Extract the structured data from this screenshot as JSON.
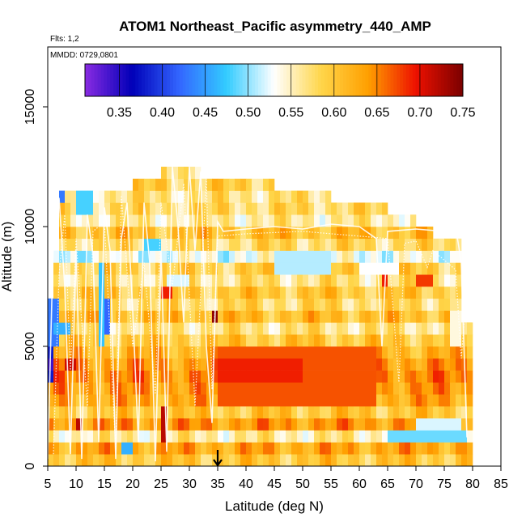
{
  "chart_data": {
    "type": "heatmap",
    "title": "ATOM1 Northeast_Pacific asymmetry_440_AMP",
    "subtitle_flights": "Flts: 1,2",
    "subtitle_dates": "MMDD: 0729,0801",
    "xlabel": "Latitude (deg N)",
    "ylabel": "Altitude (m)",
    "xlim": [
      5,
      85
    ],
    "ylim": [
      0,
      17500
    ],
    "xticks": [
      "5",
      "10",
      "15",
      "20",
      "25",
      "30",
      "35",
      "40",
      "45",
      "50",
      "55",
      "60",
      "65",
      "70",
      "75",
      "80",
      "85"
    ],
    "yticks": [
      "0",
      "5000",
      "10000",
      "15000"
    ],
    "arrow_marker_latitude": 35,
    "colorbar": {
      "min": 0.31,
      "max": 0.75,
      "ticks": [
        "0.35",
        "0.40",
        "0.45",
        "0.50",
        "0.55",
        "0.60",
        "0.65",
        "0.70",
        "0.75"
      ],
      "colors": [
        "#8a2be2",
        "#0000b8",
        "#3366ff",
        "#33ccff",
        "#ffffff",
        "#ffd64a",
        "#ff9f00",
        "#ee1100",
        "#7a0000"
      ]
    },
    "cell_size": {
      "lat_deg": 1.0,
      "alt_m": 500
    },
    "columns": [
      {
        "lat_range": [
          5,
          6
        ],
        "alt_range": [
          0,
          7000
        ]
      },
      {
        "lat_range": [
          6,
          7
        ],
        "alt_range": [
          0,
          9000
        ]
      },
      {
        "lat_range": [
          7,
          9
        ],
        "alt_range": [
          0,
          11500
        ]
      },
      {
        "lat_range": [
          9,
          14
        ],
        "alt_range": [
          0,
          11500
        ]
      },
      {
        "lat_range": [
          14,
          20
        ],
        "alt_range": [
          0,
          11500
        ]
      },
      {
        "lat_range": [
          20,
          25
        ],
        "alt_range": [
          0,
          12000
        ]
      },
      {
        "lat_range": [
          25,
          32
        ],
        "alt_range": [
          0,
          12500
        ]
      },
      {
        "lat_range": [
          32,
          35
        ],
        "alt_range": [
          0,
          12000
        ]
      },
      {
        "lat_range": [
          35,
          45
        ],
        "alt_range": [
          0,
          12000
        ]
      },
      {
        "lat_range": [
          45,
          55
        ],
        "alt_range": [
          0,
          11500
        ]
      },
      {
        "lat_range": [
          55,
          65
        ],
        "alt_range": [
          0,
          11000
        ]
      },
      {
        "lat_range": [
          65,
          70
        ],
        "alt_range": [
          0,
          10500
        ]
      },
      {
        "lat_range": [
          70,
          73
        ],
        "alt_range": [
          0,
          10000
        ]
      },
      {
        "lat_range": [
          73,
          78
        ],
        "alt_range": [
          0,
          9500
        ]
      },
      {
        "lat_range": [
          78,
          80
        ],
        "alt_range": [
          0,
          6000
        ]
      }
    ],
    "layers": [
      {
        "alt_range": [
          0,
          500
        ],
        "value": 0.6
      },
      {
        "alt_range": [
          500,
          1000
        ],
        "value": 0.63
      },
      {
        "alt_range": [
          1000,
          1500
        ],
        "value": 0.56
      },
      {
        "alt_range": [
          1500,
          2000
        ],
        "value": 0.64
      },
      {
        "alt_range": [
          2000,
          2500
        ],
        "value": 0.6
      },
      {
        "alt_range": [
          2500,
          3000
        ],
        "value": 0.63
      },
      {
        "alt_range": [
          3000,
          3500
        ],
        "value": 0.64
      },
      {
        "alt_range": [
          3500,
          4000
        ],
        "value": 0.65
      },
      {
        "alt_range": [
          4000,
          4500
        ],
        "value": 0.64
      },
      {
        "alt_range": [
          4500,
          5000
        ],
        "value": 0.62
      },
      {
        "alt_range": [
          5000,
          5500
        ],
        "value": 0.6
      },
      {
        "alt_range": [
          5500,
          6000
        ],
        "value": 0.57
      },
      {
        "alt_range": [
          6000,
          6500
        ],
        "value": 0.61
      },
      {
        "alt_range": [
          6500,
          7000
        ],
        "value": 0.58
      },
      {
        "alt_range": [
          7000,
          7500
        ],
        "value": 0.6
      },
      {
        "alt_range": [
          7500,
          8000
        ],
        "value": 0.57
      },
      {
        "alt_range": [
          8000,
          8500
        ],
        "value": 0.59
      },
      {
        "alt_range": [
          8500,
          9000
        ],
        "value": 0.53
      },
      {
        "alt_range": [
          9000,
          9500
        ],
        "value": 0.58
      },
      {
        "alt_range": [
          9500,
          10000
        ],
        "value": 0.61
      },
      {
        "alt_range": [
          10000,
          10500
        ],
        "value": 0.56
      },
      {
        "alt_range": [
          10500,
          11000
        ],
        "value": 0.58
      },
      {
        "alt_range": [
          11000,
          11500
        ],
        "value": 0.57
      },
      {
        "alt_range": [
          11500,
          12000
        ],
        "value": 0.59
      },
      {
        "alt_range": [
          12000,
          12500
        ],
        "value": 0.58
      },
      {
        "alt_range": [
          12500,
          13000
        ],
        "value": 0.63
      }
    ],
    "features": [
      {
        "lat_range": [
          35,
          63
        ],
        "alt_range": [
          2500,
          5000
        ],
        "value": 0.67
      },
      {
        "lat_range": [
          35,
          50
        ],
        "alt_range": [
          3500,
          4500
        ],
        "value": 0.69
      },
      {
        "lat_range": [
          65,
          79
        ],
        "alt_range": [
          1000,
          1500
        ],
        "value": 0.49
      },
      {
        "lat_range": [
          70,
          78
        ],
        "alt_range": [
          1500,
          2000
        ],
        "value": 0.52
      },
      {
        "lat_range": [
          5,
          6
        ],
        "alt_range": [
          3500,
          5000
        ],
        "value": 0.38
      },
      {
        "lat_range": [
          5,
          7
        ],
        "alt_range": [
          5000,
          7000
        ],
        "value": 0.43
      },
      {
        "lat_range": [
          5,
          6
        ],
        "alt_range": [
          4000,
          4500
        ],
        "value": 0.34
      },
      {
        "lat_range": [
          8,
          10
        ],
        "alt_range": [
          4000,
          4500
        ],
        "value": 0.71
      },
      {
        "lat_range": [
          14,
          15
        ],
        "alt_range": [
          5000,
          8500
        ],
        "value": 0.47
      },
      {
        "lat_range": [
          15,
          16
        ],
        "alt_range": [
          5500,
          7000
        ],
        "value": 0.42
      },
      {
        "lat_range": [
          6,
          9
        ],
        "alt_range": [
          5500,
          6000
        ],
        "value": 0.46
      },
      {
        "lat_range": [
          10,
          12
        ],
        "alt_range": [
          8500,
          9000
        ],
        "value": 0.49
      },
      {
        "lat_range": [
          22,
          25
        ],
        "alt_range": [
          9000,
          9500
        ],
        "value": 0.48
      },
      {
        "lat_range": [
          26,
          30
        ],
        "alt_range": [
          7500,
          8000
        ],
        "value": 0.52
      },
      {
        "lat_range": [
          25,
          27
        ],
        "alt_range": [
          7000,
          7500
        ],
        "value": 0.69
      },
      {
        "lat_range": [
          25,
          26
        ],
        "alt_range": [
          1000,
          2500
        ],
        "value": 0.72
      },
      {
        "lat_range": [
          10,
          11
        ],
        "alt_range": [
          1500,
          2000
        ],
        "value": 0.72
      },
      {
        "lat_range": [
          18,
          20
        ],
        "alt_range": [
          500,
          1000
        ],
        "value": 0.46
      },
      {
        "lat_range": [
          27,
          28
        ],
        "alt_range": [
          12500,
          13000
        ],
        "value": 0.68
      },
      {
        "lat_range": [
          34,
          35
        ],
        "alt_range": [
          6000,
          6500
        ],
        "value": 0.74
      },
      {
        "lat_range": [
          45,
          55
        ],
        "alt_range": [
          8000,
          9000
        ],
        "value": 0.51
      },
      {
        "lat_range": [
          60,
          67
        ],
        "alt_range": [
          8000,
          8500
        ],
        "value": 0.53
      },
      {
        "lat_range": [
          70,
          73
        ],
        "alt_range": [
          7500,
          8000
        ],
        "value": 0.68
      },
      {
        "lat_range": [
          64,
          65
        ],
        "alt_range": [
          7500,
          8000
        ],
        "value": 0.69
      },
      {
        "lat_range": [
          10,
          13
        ],
        "alt_range": [
          10500,
          11500
        ],
        "value": 0.48
      },
      {
        "lat_range": [
          7,
          8
        ],
        "alt_range": [
          11000,
          11500
        ],
        "value": 0.43
      },
      {
        "lat_range": [
          76,
          78
        ],
        "alt_range": [
          5000,
          6500
        ],
        "value": 0.54
      }
    ],
    "flight_tracks": [
      [
        [
          5,
          300
        ],
        [
          6,
          9500
        ],
        [
          7,
          11200
        ],
        [
          8,
          7500
        ],
        [
          9,
          500
        ],
        [
          10,
          9000
        ],
        [
          11,
          300
        ],
        [
          12,
          10500
        ],
        [
          13,
          8800
        ],
        [
          14,
          1000
        ],
        [
          15,
          10800
        ],
        [
          16,
          9000
        ],
        [
          17,
          300
        ],
        [
          18,
          9500
        ],
        [
          19,
          11000
        ],
        [
          20,
          6500
        ],
        [
          21,
          1000
        ],
        [
          22,
          11000
        ],
        [
          23,
          8500
        ],
        [
          24,
          200
        ],
        [
          25,
          9000
        ],
        [
          26,
          600
        ],
        [
          27,
          12500
        ],
        [
          28,
          10000
        ],
        [
          29,
          6000
        ],
        [
          30,
          12500
        ],
        [
          31,
          9000
        ],
        [
          32,
          12300
        ],
        [
          33,
          5000
        ],
        [
          34,
          1800
        ],
        [
          35,
          10200
        ],
        [
          36,
          9800
        ],
        [
          40,
          9900
        ],
        [
          45,
          10000
        ],
        [
          50,
          9900
        ],
        [
          55,
          10100
        ],
        [
          60,
          10000
        ],
        [
          63,
          9500
        ],
        [
          64,
          5000
        ],
        [
          65,
          9800
        ],
        [
          70,
          9900
        ],
        [
          75,
          9800
        ],
        [
          77,
          10000
        ],
        [
          78,
          8500
        ],
        [
          79,
          1200
        ]
      ],
      [
        [
          6,
          500
        ],
        [
          7,
          8000
        ],
        [
          8,
          10500
        ],
        [
          9,
          4000
        ],
        [
          10,
          9500
        ],
        [
          12,
          2500
        ],
        [
          13,
          9800
        ],
        [
          15,
          10200
        ],
        [
          17,
          700
        ],
        [
          18,
          11300
        ],
        [
          20,
          5000
        ],
        [
          22,
          8500
        ],
        [
          24,
          3000
        ],
        [
          25,
          11000
        ],
        [
          27,
          7500
        ],
        [
          29,
          11800
        ],
        [
          31,
          2500
        ],
        [
          33,
          12000
        ],
        [
          34,
          3200
        ],
        [
          35,
          9600
        ],
        [
          40,
          9700
        ],
        [
          50,
          9800
        ],
        [
          60,
          9600
        ],
        [
          65,
          9500
        ],
        [
          67,
          3500
        ],
        [
          68,
          9300
        ],
        [
          70,
          9400
        ],
        [
          72,
          8300
        ],
        [
          73,
          9000
        ],
        [
          77,
          8200
        ],
        [
          78,
          4500
        ],
        [
          79,
          7500
        ],
        [
          80,
          6000
        ]
      ]
    ]
  }
}
